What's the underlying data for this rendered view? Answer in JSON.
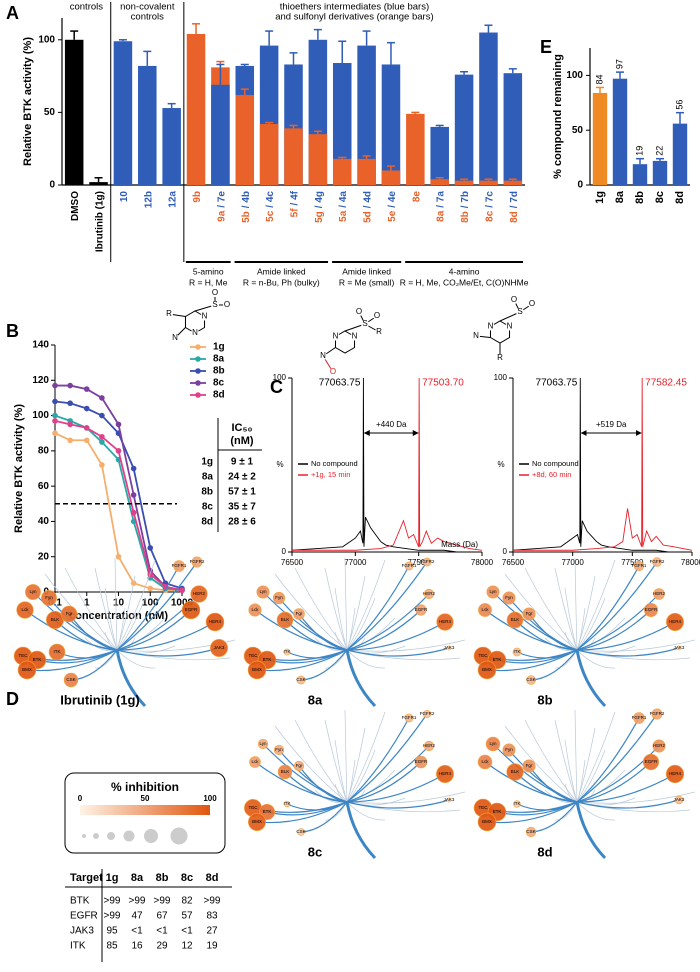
{
  "panels": [
    "A",
    "B",
    "C",
    "D",
    "E"
  ],
  "chart_data": [
    {
      "type": "bar",
      "ylabel": "Relative BTK activity (%)",
      "ylim": [
        0,
        115
      ],
      "yticks": [
        0,
        50,
        100
      ],
      "top_labels": [
        [
          "controls"
        ],
        [
          "non-covalent",
          "controls"
        ],
        [
          "thioethers intermediates (blue bars)",
          "and sulfonyl derivatives (orange bars)"
        ]
      ],
      "categories": [
        [
          "DMSO"
        ],
        [
          "Ibrutinib (1g)"
        ],
        [
          "10"
        ],
        [
          "12b"
        ],
        [
          "12a"
        ],
        [
          "9b"
        ],
        [
          "9a",
          "/ 7e"
        ],
        [
          "5b",
          "/ 4b"
        ],
        [
          "5c",
          "/ 4c"
        ],
        [
          "5f",
          "/ 4f"
        ],
        [
          "5g",
          "/ 4g"
        ],
        [
          "5a",
          "/ 4a"
        ],
        [
          "5d",
          "/ 4d"
        ],
        [
          "5e",
          "/ 4e"
        ],
        [
          "8e"
        ],
        [
          "8a",
          "/ 7a"
        ],
        [
          "8b",
          "/ 7b"
        ],
        [
          "8c",
          "/ 7c"
        ],
        [
          "8d",
          "/ 7d"
        ]
      ],
      "series": [
        {
          "color": "#000000",
          "values": [
            100,
            2,
            null,
            null,
            null,
            null,
            null,
            null,
            null,
            null,
            null,
            null,
            null,
            null,
            null,
            null,
            null,
            null,
            null
          ],
          "errors": [
            6,
            3,
            null,
            null,
            null,
            null,
            null,
            null,
            null,
            null,
            null,
            null,
            null,
            null,
            null,
            null,
            null,
            null,
            null
          ]
        },
        {
          "color": "#e8622a",
          "values": [
            null,
            null,
            null,
            null,
            null,
            104,
            81,
            62,
            42,
            39,
            35,
            18,
            18,
            10,
            49,
            4,
            3,
            3,
            3
          ],
          "errors": [
            null,
            null,
            null,
            null,
            null,
            7,
            4,
            4,
            1,
            2,
            2,
            1,
            2,
            3,
            1,
            1,
            1,
            1,
            1
          ]
        },
        {
          "color": "#2f5db8",
          "values": [
            null,
            null,
            99,
            82,
            53,
            null,
            69,
            82,
            96,
            83,
            100,
            84,
            96,
            83,
            null,
            40,
            76,
            105,
            77
          ],
          "errors": [
            null,
            null,
            1,
            10,
            3,
            null,
            14,
            1,
            10,
            8,
            7,
            15,
            10,
            15,
            null,
            1,
            2,
            5,
            3
          ]
        }
      ],
      "groups": [
        [
          "5-amino",
          "R = H, Me"
        ],
        [
          "Amide linked",
          "R = n-Bu, Ph (bulky)"
        ],
        [
          "Amide linked",
          "R = Me (small)"
        ],
        [
          "4-amino",
          "R = H, Me, CO₂Me/Et, C(O)NHMe"
        ]
      ],
      "structures": [
        [
          "R",
          "N",
          "N",
          "S",
          "O",
          "O",
          "N"
        ],
        [
          "N",
          "N",
          "S",
          "O",
          "O",
          "R",
          "N",
          "O"
        ],
        [
          "N",
          "N",
          "S",
          "O",
          "O",
          "N",
          "R"
        ]
      ]
    },
    {
      "type": "bar",
      "ylabel": "% compound remaining",
      "ylim": [
        0,
        125
      ],
      "yticks": [
        0,
        50,
        100
      ],
      "categories": [
        "1g",
        "8a",
        "8b",
        "8c",
        "8d"
      ],
      "values": [
        84,
        97,
        19,
        22,
        56
      ],
      "errors": [
        5,
        6,
        5,
        2,
        10
      ],
      "colors": [
        "#f08a24",
        "#2f5db8",
        "#2f5db8",
        "#2f5db8",
        "#2f5db8"
      ]
    },
    {
      "type": "line",
      "log_x": true,
      "markers": true,
      "xlabel": "concentration (nM)",
      "ylabel": "Relative BTK activity (%)",
      "xlim": [
        0.1,
        1000
      ],
      "ylim": [
        0,
        140
      ],
      "xticks": [
        0.1,
        1,
        10,
        100,
        1000
      ],
      "yticks": [
        0,
        20,
        40,
        60,
        80,
        100,
        120,
        140
      ],
      "hline": 50,
      "x": [
        0.1,
        0.3,
        1,
        3,
        10,
        30,
        100,
        300,
        1000
      ],
      "series": [
        {
          "name": "1g",
          "color": "#f5ae6b",
          "values": [
            90,
            86,
            86,
            72,
            20,
            5,
            2,
            1,
            1
          ]
        },
        {
          "name": "8a",
          "color": "#2aa7a7",
          "values": [
            100,
            97,
            93,
            85,
            75,
            40,
            8,
            2,
            1
          ]
        },
        {
          "name": "8b",
          "color": "#3a4db0",
          "values": [
            108,
            107,
            104,
            100,
            90,
            70,
            25,
            5,
            2
          ]
        },
        {
          "name": "8c",
          "color": "#7b3fa0",
          "values": [
            117,
            117,
            115,
            110,
            95,
            55,
            12,
            3,
            1
          ]
        },
        {
          "name": "8d",
          "color": "#e0408a",
          "values": [
            97,
            95,
            93,
            88,
            80,
            45,
            10,
            3,
            1
          ]
        }
      ],
      "ic50_header": [
        "IC₅₀",
        "(nM)"
      ],
      "ic50": [
        "9 ± 1",
        "24 ± 2",
        "57 ± 1",
        "35 ± 7",
        "28 ± 6"
      ]
    },
    {
      "type": "line",
      "xlabel": "Mass (Da)",
      "ylabel": "%",
      "xlim": [
        76500,
        78000
      ],
      "ylim": [
        0,
        100
      ],
      "xticks": [
        76500,
        77000,
        77500,
        78000
      ],
      "yticks": [
        0,
        100
      ],
      "peaks": [
        77063.75,
        {
          "value": 77503.7,
          "label": "77503.70"
        }
      ],
      "shift": "+440 Da",
      "series": [
        {
          "name": "No compound",
          "color": "#000000",
          "x": [
            76500,
            76700,
            76900,
            77000,
            77040,
            77060,
            77063.75,
            77068,
            77080,
            77120,
            77160,
            77200,
            77240,
            77300,
            77400,
            77500,
            77600,
            77700,
            77800,
            78000
          ],
          "values": [
            1,
            2,
            3,
            8,
            12,
            5,
            100,
            3,
            20,
            14,
            10,
            6,
            4,
            3,
            2,
            1,
            1,
            1,
            0,
            0
          ]
        },
        {
          "name": "+1g, 15 min",
          "color": "#e8202a",
          "x": [
            76500,
            76800,
            77000,
            77200,
            77300,
            77380,
            77420,
            77460,
            77500,
            77503.7,
            77508,
            77530,
            77560,
            77600,
            77650,
            77700,
            77800,
            77900,
            78000
          ],
          "values": [
            1,
            1,
            1,
            2,
            4,
            18,
            8,
            10,
            3,
            100,
            3,
            6,
            12,
            5,
            8,
            6,
            4,
            2,
            1
          ]
        }
      ]
    },
    {
      "type": "line",
      "ylabel": "%",
      "xlim": [
        76500,
        78000
      ],
      "ylim": [
        0,
        100
      ],
      "xticks": [
        76500,
        77000,
        77500,
        78000
      ],
      "yticks": [
        0,
        100
      ],
      "peaks": [
        77063.75,
        77582.45
      ],
      "shift": "+519 Da",
      "series": [
        {
          "name": "No compound",
          "color": "#000000",
          "x": [
            76500,
            76700,
            76900,
            77000,
            77040,
            77060,
            77063.75,
            77068,
            77080,
            77120,
            77160,
            77200,
            77240,
            77300,
            77400,
            77500,
            77600,
            77700,
            77800,
            78000
          ],
          "values": [
            1,
            2,
            3,
            8,
            10,
            5,
            100,
            3,
            18,
            12,
            9,
            6,
            4,
            3,
            2,
            1,
            1,
            1,
            0,
            0
          ]
        },
        {
          "name": "+8d, 60 min",
          "color": "#e8202a",
          "x": [
            76500,
            76800,
            77000,
            77200,
            77350,
            77420,
            77460,
            77500,
            77540,
            77578,
            77582.45,
            77587,
            77620,
            77660,
            77700,
            77760,
            77850,
            78000
          ],
          "values": [
            1,
            1,
            1,
            2,
            3,
            6,
            25,
            8,
            10,
            3,
            100,
            3,
            12,
            6,
            9,
            4,
            3,
            1
          ]
        }
      ]
    }
  ],
  "kinome": {
    "legend_title": "% inhibition",
    "legend_ticks": [
      0,
      50,
      100
    ],
    "kinases": [
      "TEC",
      "BTK",
      "BMX",
      "ITK",
      "BLK",
      "Lck",
      "Fyn",
      "Fgr",
      "Lyn",
      "EGFR",
      "HER2",
      "HER4",
      "JAK3",
      "FGFR1",
      "FGFR2",
      "CSK"
    ],
    "trees": [
      {
        "title": "Ibrutinib (1g)",
        "values": [
          99,
          99,
          99,
          85,
          95,
          90,
          80,
          85,
          80,
          99,
          90,
          99,
          95,
          50,
          45,
          70
        ]
      },
      {
        "title": "8a",
        "values": [
          99,
          99,
          99,
          16,
          85,
          60,
          55,
          50,
          60,
          47,
          40,
          90,
          1,
          30,
          30,
          30
        ]
      },
      {
        "title": "8b",
        "values": [
          99,
          99,
          99,
          29,
          85,
          65,
          60,
          60,
          60,
          67,
          50,
          95,
          1,
          40,
          35,
          35
        ]
      },
      {
        "title": "8c",
        "values": [
          95,
          82,
          95,
          12,
          70,
          50,
          40,
          40,
          40,
          57,
          40,
          95,
          1,
          30,
          25,
          20
        ]
      },
      {
        "title": "8d",
        "values": [
          99,
          99,
          99,
          19,
          90,
          70,
          60,
          60,
          70,
          83,
          60,
          97,
          27,
          50,
          45,
          40
        ]
      }
    ]
  },
  "table": {
    "header": [
      "Target",
      "1g",
      "8a",
      "8b",
      "8c",
      "8d"
    ],
    "rows": [
      [
        "BTK",
        ">99",
        ">99",
        ">99",
        "82",
        ">99"
      ],
      [
        "EGFR",
        ">99",
        "47",
        "67",
        "57",
        "83"
      ],
      [
        "JAK3",
        "95",
        "<1",
        "<1",
        "<1",
        "27"
      ],
      [
        "ITK",
        "85",
        "16",
        "29",
        "12",
        "19"
      ]
    ]
  }
}
